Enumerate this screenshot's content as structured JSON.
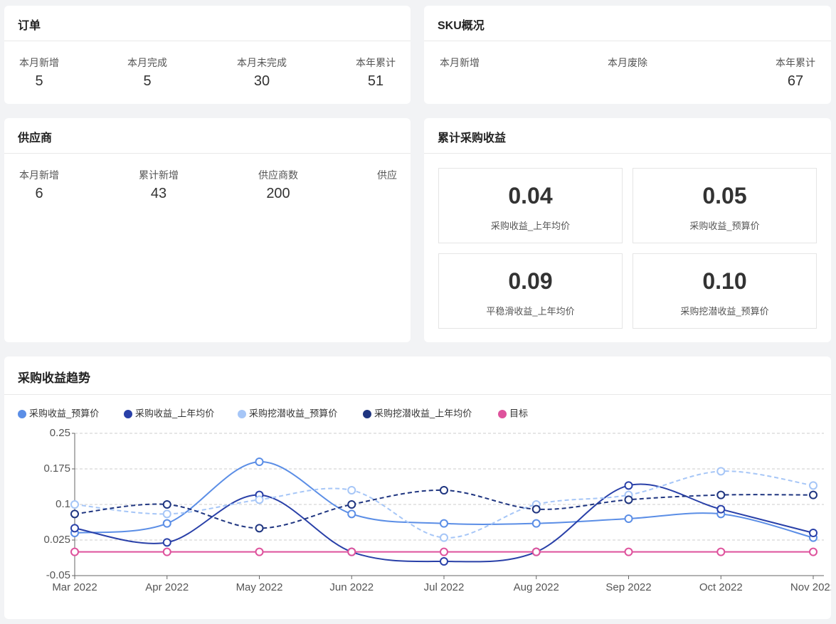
{
  "orders": {
    "title": "订单",
    "stats": [
      {
        "label": "本月新增",
        "value": "5"
      },
      {
        "label": "本月完成",
        "value": "5"
      },
      {
        "label": "本月未完成",
        "value": "30"
      },
      {
        "label": "本年累计",
        "value": "51"
      }
    ]
  },
  "sku": {
    "title": "SKU概况",
    "stats": [
      {
        "label": "本月新增"
      },
      {
        "label": "本月废除"
      },
      {
        "label": "本年累计",
        "value": "67"
      }
    ]
  },
  "suppliers": {
    "title": "供应商",
    "stats": [
      {
        "label": "本月新增",
        "value": "6"
      },
      {
        "label": "累计新增",
        "value": "43"
      },
      {
        "label": "供应商数",
        "value": "200"
      },
      {
        "label": "供应"
      }
    ]
  },
  "income": {
    "title": "累计采购收益",
    "boxes": [
      {
        "value": "0.04",
        "label": "采购收益_上年均价"
      },
      {
        "value": "0.05",
        "label": "采购收益_预算价"
      },
      {
        "value": "0.09",
        "label": "平稳滑收益_上年均价"
      },
      {
        "value": "0.10",
        "label": "采购挖潜收益_预算价"
      }
    ]
  },
  "chart_data": {
    "type": "line",
    "title": "采购收益趋势",
    "categories": [
      "Mar 2022",
      "Apr 2022",
      "May 2022",
      "Jun 2022",
      "Jul 2022",
      "Aug 2022",
      "Sep 2022",
      "Oct 2022",
      "Nov 2022"
    ],
    "series": [
      {
        "name": "采购收益_预算价",
        "color": "#5b8ee6",
        "line_style": "solid",
        "values": [
          0.04,
          0.06,
          0.19,
          0.08,
          0.06,
          0.06,
          0.07,
          0.08,
          0.03
        ]
      },
      {
        "name": "采购收益_上年均价",
        "color": "#2940a8",
        "line_style": "solid",
        "values": [
          0.05,
          0.02,
          0.12,
          0.0,
          -0.02,
          0.0,
          0.14,
          0.09,
          0.04
        ]
      },
      {
        "name": "采购挖潜收益_预算价",
        "color": "#a6c6f7",
        "line_style": "dashed",
        "values": [
          0.1,
          0.08,
          0.11,
          0.13,
          0.03,
          0.1,
          0.12,
          0.17,
          0.14
        ]
      },
      {
        "name": "采购挖潜收益_上年均价",
        "color": "#1f3580",
        "line_style": "dashed",
        "values": [
          0.08,
          0.1,
          0.05,
          0.1,
          0.13,
          0.09,
          0.11,
          0.12,
          0.12
        ]
      },
      {
        "name": "目标",
        "color": "#de529c",
        "line_style": "solid",
        "values": [
          0,
          0,
          0,
          0,
          0,
          0,
          0,
          0,
          0
        ]
      }
    ],
    "ylim": [
      -0.05,
      0.25
    ],
    "yticks": [
      -0.05,
      0.025,
      0.1,
      0.175,
      0.25
    ],
    "grid": true
  }
}
